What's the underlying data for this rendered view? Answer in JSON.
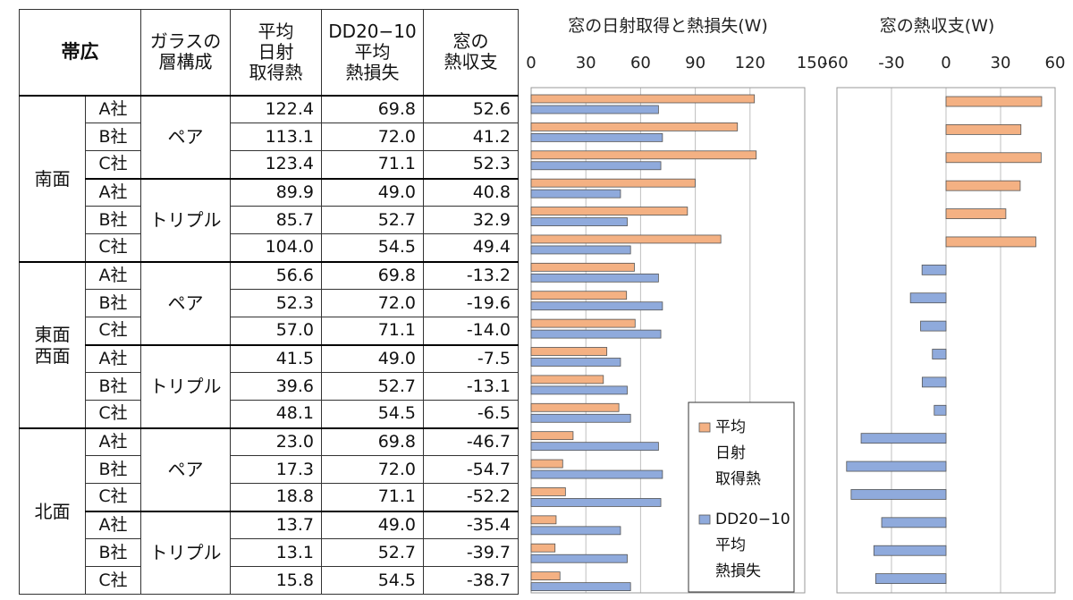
{
  "table": {
    "headers": {
      "city": "帯広",
      "glass": [
        "ガラスの",
        "層構成"
      ],
      "solar": [
        "平均",
        "日射",
        "取得熱"
      ],
      "loss": [
        "DD20−10",
        "平均",
        "熱損失"
      ],
      "balance": [
        "窓の",
        "熱収支"
      ]
    },
    "groups": [
      {
        "side": [
          "南面"
        ],
        "subgroups": [
          {
            "glass": "ペア",
            "rows": [
              {
                "company": "A社",
                "solar": "122.4",
                "loss": "69.8",
                "balance": "52.6"
              },
              {
                "company": "B社",
                "solar": "113.1",
                "loss": "72.0",
                "balance": "41.2"
              },
              {
                "company": "C社",
                "solar": "123.4",
                "loss": "71.1",
                "balance": "52.3"
              }
            ]
          },
          {
            "glass": "トリプル",
            "rows": [
              {
                "company": "A社",
                "solar": "89.9",
                "loss": "49.0",
                "balance": "40.8"
              },
              {
                "company": "B社",
                "solar": "85.7",
                "loss": "52.7",
                "balance": "32.9"
              },
              {
                "company": "C社",
                "solar": "104.0",
                "loss": "54.5",
                "balance": "49.4"
              }
            ]
          }
        ]
      },
      {
        "side": [
          "東面",
          "西面"
        ],
        "subgroups": [
          {
            "glass": "ペア",
            "rows": [
              {
                "company": "A社",
                "solar": "56.6",
                "loss": "69.8",
                "balance": "-13.2"
              },
              {
                "company": "B社",
                "solar": "52.3",
                "loss": "72.0",
                "balance": "-19.6"
              },
              {
                "company": "C社",
                "solar": "57.0",
                "loss": "71.1",
                "balance": "-14.0"
              }
            ]
          },
          {
            "glass": "トリプル",
            "rows": [
              {
                "company": "A社",
                "solar": "41.5",
                "loss": "49.0",
                "balance": "-7.5"
              },
              {
                "company": "B社",
                "solar": "39.6",
                "loss": "52.7",
                "balance": "-13.1"
              },
              {
                "company": "C社",
                "solar": "48.1",
                "loss": "54.5",
                "balance": "-6.5"
              }
            ]
          }
        ]
      },
      {
        "side": [
          "北面"
        ],
        "subgroups": [
          {
            "glass": "ペア",
            "rows": [
              {
                "company": "A社",
                "solar": "23.0",
                "loss": "69.8",
                "balance": "-46.7"
              },
              {
                "company": "B社",
                "solar": "17.3",
                "loss": "72.0",
                "balance": "-54.7"
              },
              {
                "company": "C社",
                "solar": "18.8",
                "loss": "71.1",
                "balance": "-52.2"
              }
            ]
          },
          {
            "glass": "トリプル",
            "rows": [
              {
                "company": "A社",
                "solar": "13.7",
                "loss": "49.0",
                "balance": "-35.4"
              },
              {
                "company": "B社",
                "solar": "13.1",
                "loss": "52.7",
                "balance": "-39.7"
              },
              {
                "company": "C社",
                "solar": "15.8",
                "loss": "54.5",
                "balance": "-38.7"
              }
            ]
          }
        ]
      }
    ]
  },
  "chart_data": [
    {
      "type": "bar",
      "orientation": "horizontal",
      "title": "窓の日射取得と熱損失(W)",
      "xlim": [
        0,
        150
      ],
      "ticks": [
        "0",
        "30",
        "60",
        "90",
        "120",
        "150"
      ],
      "grid": true,
      "legend": "bottom-right",
      "legend_lines": [
        [
          "平均",
          "日射",
          "取得熱"
        ],
        [
          "DD20−10",
          "平均",
          "熱損失"
        ]
      ],
      "series": [
        {
          "color": "#f4b183",
          "values": [
            122.4,
            113.1,
            123.4,
            89.9,
            85.7,
            104.0,
            56.6,
            52.3,
            57.0,
            41.5,
            39.6,
            48.1,
            23.0,
            17.3,
            18.8,
            13.7,
            13.1,
            15.8
          ]
        },
        {
          "color": "#8faadc",
          "values": [
            69.8,
            72.0,
            71.1,
            49.0,
            52.7,
            54.5,
            69.8,
            72.0,
            71.1,
            49.0,
            52.7,
            54.5,
            69.8,
            72.0,
            71.1,
            49.0,
            52.7,
            54.5
          ]
        }
      ]
    },
    {
      "type": "bar",
      "orientation": "horizontal",
      "title": "窓の熱収支(W)",
      "xlim": [
        -60,
        60
      ],
      "ticks": [
        "-60",
        "-30",
        "0",
        "30",
        "60"
      ],
      "grid": true,
      "positive_color": "#f4b183",
      "negative_color": "#8faadc",
      "values": [
        52.6,
        41.2,
        52.3,
        40.8,
        32.9,
        49.4,
        -13.2,
        -19.6,
        -14.0,
        -7.5,
        -13.1,
        -6.5,
        -46.7,
        -54.7,
        -52.2,
        -35.4,
        -39.7,
        -38.7
      ]
    }
  ]
}
